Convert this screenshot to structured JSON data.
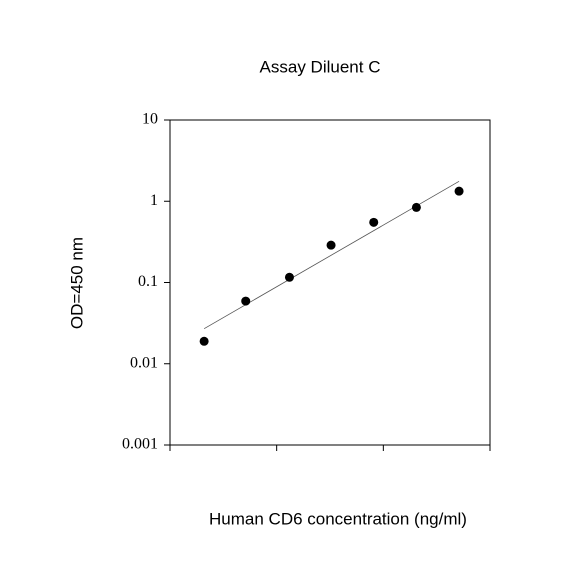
{
  "chart_data": {
    "type": "scatter",
    "title": "Assay Diluent C",
    "x_label": "Human CD6 concentration (ng/ml)",
    "y_label": "OD=450 nm",
    "x": [
      0.32,
      0.71,
      1.12,
      1.51,
      1.91,
      2.31,
      2.71
    ],
    "values": [
      0.0189,
      0.059,
      0.116,
      0.288,
      0.55,
      0.84,
      1.33
    ],
    "color": "#000000",
    "fit_line": {
      "x": [
        0.32,
        2.71
      ],
      "values": [
        0.027,
        1.76
      ],
      "color": "#555555"
    },
    "xlim": [
      0,
      3
    ],
    "xticks": [
      0,
      1,
      2,
      3
    ],
    "ylim": [
      0.001,
      10
    ],
    "yticks": [
      0.001,
      0.01,
      0.1,
      1,
      10
    ],
    "y_scale": "log",
    "grid": false
  }
}
